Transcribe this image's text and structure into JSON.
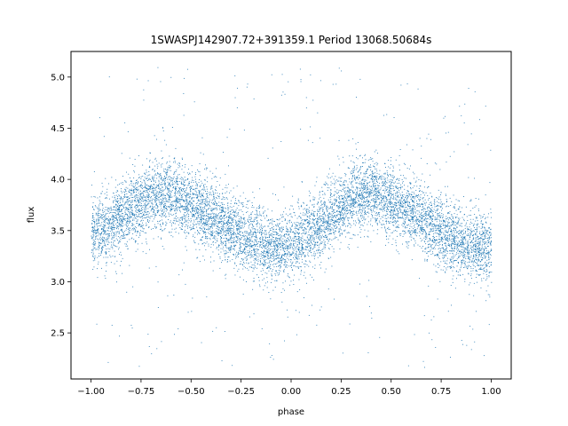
{
  "chart_data": {
    "type": "scatter",
    "title": "1SWASPJ142907.72+391359.1 Period 13068.50684s",
    "xlabel": "phase",
    "ylabel": "flux",
    "xlim": [
      -1.1,
      1.1
    ],
    "ylim": [
      2.05,
      5.25
    ],
    "xticks": [
      -1.0,
      -0.75,
      -0.5,
      -0.25,
      0.0,
      0.25,
      0.5,
      0.75,
      1.0
    ],
    "xtick_labels": [
      "−1.00",
      "−0.75",
      "−0.50",
      "−0.25",
      "0.00",
      "0.25",
      "0.50",
      "0.75",
      "1.00"
    ],
    "yticks": [
      2.5,
      3.0,
      3.5,
      4.0,
      4.5,
      5.0
    ],
    "ytick_labels": [
      "2.5",
      "3.0",
      "3.5",
      "4.0",
      "4.5",
      "5.0"
    ],
    "grid": false,
    "legend": "none",
    "point_color": "#1f77b4",
    "series": [
      {
        "x_range": [
          -1.0,
          1.0
        ],
        "model": "mean flux = 3.6 + 0.26 * sin(2π (phase - 0.08)); scatter ≈ 0.18",
        "binned_mean": {
          "x": [
            -1.0,
            -0.9,
            -0.8,
            -0.7,
            -0.6,
            -0.5,
            -0.4,
            -0.3,
            -0.2,
            -0.1,
            0.0,
            0.1,
            0.2,
            0.3,
            0.4,
            0.5,
            0.6,
            0.7,
            0.8,
            0.9,
            1.0
          ],
          "y": [
            3.47,
            3.55,
            3.72,
            3.83,
            3.86,
            3.78,
            3.65,
            3.52,
            3.4,
            3.34,
            3.36,
            3.48,
            3.65,
            3.82,
            3.87,
            3.8,
            3.68,
            3.54,
            3.42,
            3.35,
            3.36
          ]
        }
      }
    ]
  }
}
